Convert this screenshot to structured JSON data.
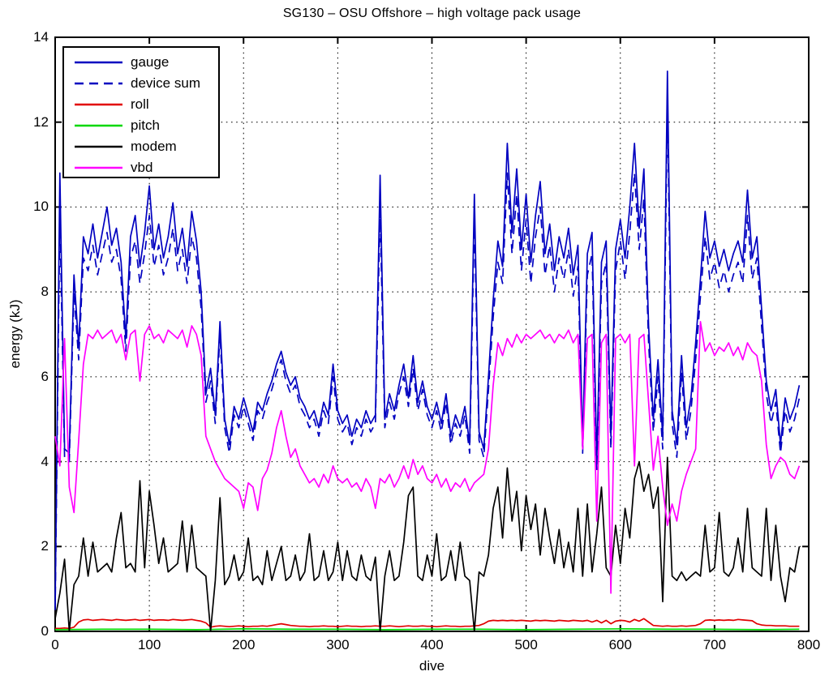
{
  "chart_data": {
    "type": "line",
    "title": "SG130 – OSU Offshore – high voltage pack usage",
    "xlabel": "dive",
    "ylabel": "energy (kJ)",
    "xlim": [
      0,
      800
    ],
    "ylim": [
      0,
      14
    ],
    "xticks": [
      0,
      100,
      200,
      300,
      400,
      500,
      600,
      700,
      800
    ],
    "yticks": [
      0,
      2,
      4,
      6,
      8,
      10,
      12,
      14
    ],
    "grid": true,
    "grid_style": "dotted",
    "legend_position": "top-left",
    "x": {
      "start": 0,
      "step": 5
    },
    "series": [
      {
        "name": "gauge",
        "color": "#0000C0",
        "style": "solid",
        "values": [
          0.6,
          10.8,
          4.3,
          4.2,
          8.4,
          6.7,
          9.3,
          8.9,
          9.6,
          8.8,
          9.4,
          10.0,
          9.1,
          9.5,
          8.7,
          6.9,
          9.3,
          9.8,
          8.6,
          9.4,
          10.5,
          9.0,
          9.6,
          8.8,
          9.3,
          10.1,
          8.9,
          9.5,
          8.6,
          9.9,
          9.2,
          8.0,
          5.6,
          6.2,
          5.1,
          7.3,
          5.0,
          4.4,
          5.3,
          5.0,
          5.5,
          5.1,
          4.7,
          5.4,
          5.2,
          5.6,
          5.9,
          6.3,
          6.6,
          6.1,
          5.8,
          6.0,
          5.5,
          5.3,
          5.0,
          5.2,
          4.8,
          5.4,
          5.1,
          6.3,
          5.2,
          4.9,
          5.1,
          4.6,
          5.0,
          4.8,
          5.2,
          4.9,
          5.1,
          10.75,
          5.0,
          5.6,
          5.2,
          5.8,
          6.3,
          5.5,
          6.5,
          5.4,
          5.9,
          5.3,
          5.0,
          5.4,
          4.9,
          5.6,
          4.6,
          5.1,
          4.8,
          5.3,
          4.4,
          10.3,
          4.7,
          4.3,
          6.0,
          7.8,
          9.2,
          8.6,
          11.5,
          9.4,
          10.9,
          9.0,
          10.3,
          8.7,
          9.8,
          10.6,
          8.9,
          9.6,
          8.5,
          9.3,
          8.8,
          9.5,
          8.4,
          9.1,
          4.4,
          8.9,
          9.4,
          4.0,
          8.7,
          9.2,
          4.6,
          9.0,
          9.7,
          8.8,
          10.0,
          11.5,
          9.5,
          10.9,
          7.2,
          5.0,
          6.4,
          4.6,
          13.2,
          5.2,
          4.4,
          6.5,
          4.8,
          5.5,
          6.8,
          8.3,
          9.9,
          8.8,
          9.2,
          8.6,
          9.0,
          8.5,
          8.9,
          9.2,
          8.7,
          10.4,
          8.8,
          9.3,
          7.6,
          5.9,
          5.2,
          5.7,
          4.4,
          5.5,
          5.0,
          5.3,
          5.8
        ]
      },
      {
        "name": "device sum",
        "color": "#0000C0",
        "style": "dashed",
        "values": [
          0.5,
          9.8,
          4.1,
          4.0,
          8.0,
          6.4,
          8.8,
          8.5,
          9.1,
          8.4,
          8.9,
          9.4,
          8.7,
          9.0,
          8.3,
          6.6,
          8.8,
          9.2,
          8.2,
          8.9,
          9.8,
          8.6,
          9.1,
          8.4,
          8.8,
          9.5,
          8.5,
          9.0,
          8.2,
          9.3,
          8.8,
          7.6,
          5.4,
          5.9,
          4.9,
          7.0,
          4.8,
          4.2,
          5.1,
          4.8,
          5.3,
          4.9,
          4.5,
          5.2,
          5.0,
          5.4,
          5.7,
          6.1,
          6.4,
          5.9,
          5.6,
          5.8,
          5.3,
          5.1,
          4.8,
          5.0,
          4.6,
          5.2,
          4.9,
          6.0,
          5.0,
          4.7,
          4.9,
          4.4,
          4.8,
          4.6,
          5.0,
          4.7,
          4.9,
          9.9,
          4.8,
          5.4,
          5.0,
          5.6,
          6.0,
          5.3,
          6.2,
          5.2,
          5.7,
          5.1,
          4.8,
          5.2,
          4.7,
          5.4,
          4.4,
          4.9,
          4.6,
          5.1,
          4.2,
          9.7,
          4.5,
          4.1,
          5.7,
          7.4,
          8.7,
          8.2,
          10.8,
          8.9,
          10.3,
          8.5,
          9.7,
          8.2,
          9.3,
          10.0,
          8.4,
          9.1,
          8.0,
          8.8,
          8.3,
          9.0,
          7.9,
          8.6,
          4.2,
          8.4,
          8.9,
          3.8,
          8.2,
          8.7,
          4.3,
          8.5,
          9.2,
          8.3,
          9.4,
          10.8,
          9.0,
          10.2,
          6.8,
          4.7,
          6.0,
          4.3,
          12.4,
          4.9,
          4.1,
          6.1,
          4.5,
          5.2,
          6.4,
          7.9,
          9.3,
          8.3,
          8.7,
          8.1,
          8.5,
          8.0,
          8.4,
          8.7,
          8.2,
          9.8,
          8.3,
          8.8,
          7.2,
          5.6,
          4.9,
          5.4,
          4.2,
          5.2,
          4.7,
          5.0,
          5.5
        ]
      },
      {
        "name": "roll",
        "color": "#E10000",
        "style": "solid",
        "values": [
          0.07,
          0.07,
          0.08,
          0.07,
          0.1,
          0.22,
          0.27,
          0.28,
          0.26,
          0.27,
          0.28,
          0.27,
          0.26,
          0.28,
          0.27,
          0.26,
          0.27,
          0.28,
          0.26,
          0.27,
          0.28,
          0.26,
          0.27,
          0.27,
          0.26,
          0.28,
          0.27,
          0.26,
          0.27,
          0.28,
          0.26,
          0.24,
          0.2,
          0.1,
          0.12,
          0.13,
          0.12,
          0.11,
          0.12,
          0.13,
          0.12,
          0.11,
          0.12,
          0.12,
          0.13,
          0.12,
          0.14,
          0.16,
          0.18,
          0.16,
          0.14,
          0.13,
          0.12,
          0.12,
          0.11,
          0.12,
          0.12,
          0.13,
          0.12,
          0.12,
          0.11,
          0.12,
          0.13,
          0.12,
          0.12,
          0.11,
          0.12,
          0.12,
          0.13,
          0.12,
          0.12,
          0.13,
          0.12,
          0.11,
          0.12,
          0.13,
          0.12,
          0.12,
          0.13,
          0.12,
          0.12,
          0.11,
          0.12,
          0.13,
          0.12,
          0.12,
          0.11,
          0.12,
          0.12,
          0.13,
          0.14,
          0.18,
          0.24,
          0.26,
          0.25,
          0.26,
          0.25,
          0.26,
          0.25,
          0.26,
          0.25,
          0.24,
          0.26,
          0.25,
          0.26,
          0.25,
          0.24,
          0.26,
          0.25,
          0.24,
          0.26,
          0.25,
          0.24,
          0.26,
          0.22,
          0.26,
          0.2,
          0.26,
          0.18,
          0.24,
          0.26,
          0.25,
          0.22,
          0.28,
          0.24,
          0.3,
          0.22,
          0.14,
          0.13,
          0.12,
          0.13,
          0.12,
          0.12,
          0.13,
          0.12,
          0.13,
          0.14,
          0.18,
          0.26,
          0.27,
          0.26,
          0.27,
          0.26,
          0.27,
          0.26,
          0.28,
          0.27,
          0.26,
          0.25,
          0.18,
          0.15,
          0.14,
          0.14,
          0.13,
          0.13,
          0.13,
          0.12,
          0.12,
          0.12
        ]
      },
      {
        "name": "pitch",
        "color": "#00D800",
        "style": "solid",
        "x": [
          0,
          50,
          100,
          150,
          200,
          250,
          300,
          350,
          400,
          450,
          500,
          550,
          600,
          650,
          700,
          750,
          790
        ],
        "values": [
          0.04,
          0.05,
          0.05,
          0.04,
          0.06,
          0.05,
          0.05,
          0.04,
          0.05,
          0.05,
          0.04,
          0.05,
          0.06,
          0.05,
          0.05,
          0.04,
          0.05
        ]
      },
      {
        "name": "modem",
        "color": "#000000",
        "style": "solid",
        "values": [
          0.3,
          0.9,
          1.7,
          0.0,
          1.1,
          1.3,
          2.2,
          1.3,
          2.1,
          1.4,
          1.5,
          1.6,
          1.4,
          2.2,
          2.8,
          1.5,
          1.6,
          1.4,
          3.55,
          1.5,
          3.3,
          2.5,
          1.6,
          2.2,
          1.4,
          1.5,
          1.6,
          2.6,
          1.4,
          2.5,
          1.5,
          1.4,
          1.3,
          0.0,
          1.2,
          3.15,
          1.1,
          1.3,
          1.8,
          1.2,
          1.4,
          2.2,
          1.2,
          1.3,
          1.1,
          1.9,
          1.2,
          1.6,
          2.0,
          1.2,
          1.3,
          1.8,
          1.2,
          1.4,
          2.3,
          1.2,
          1.3,
          1.9,
          1.2,
          1.4,
          2.1,
          1.2,
          1.9,
          1.3,
          1.2,
          1.8,
          1.3,
          1.2,
          1.75,
          0.0,
          1.3,
          1.9,
          1.2,
          1.3,
          2.1,
          3.2,
          3.4,
          1.3,
          1.2,
          1.8,
          1.3,
          2.3,
          1.2,
          1.3,
          1.9,
          1.2,
          2.1,
          1.3,
          1.2,
          0.0,
          1.4,
          1.3,
          1.8,
          2.9,
          3.4,
          2.2,
          3.85,
          2.6,
          3.3,
          1.9,
          3.2,
          2.4,
          3.0,
          1.8,
          2.9,
          2.2,
          1.6,
          2.4,
          1.5,
          2.1,
          1.4,
          2.9,
          1.3,
          3.0,
          1.4,
          2.3,
          3.4,
          1.5,
          1.3,
          2.5,
          1.6,
          2.9,
          2.2,
          3.6,
          4.0,
          3.3,
          3.7,
          2.9,
          3.4,
          0.7,
          4.1,
          1.3,
          1.2,
          1.4,
          1.2,
          1.3,
          1.4,
          1.3,
          2.5,
          1.4,
          1.5,
          2.8,
          1.4,
          1.3,
          1.5,
          2.2,
          1.4,
          2.9,
          1.5,
          1.4,
          1.3,
          2.9,
          1.2,
          2.5,
          1.3,
          0.7,
          1.5,
          1.4,
          2.0
        ]
      },
      {
        "name": "vbd",
        "color": "#FF00FF",
        "style": "solid",
        "values": [
          4.6,
          3.9,
          6.9,
          3.4,
          2.8,
          4.5,
          6.3,
          7.0,
          6.9,
          7.1,
          6.9,
          7.0,
          7.1,
          6.8,
          7.0,
          6.4,
          7.0,
          7.1,
          5.9,
          7.0,
          7.2,
          6.9,
          7.0,
          6.8,
          7.1,
          7.0,
          6.9,
          7.1,
          6.7,
          7.2,
          7.0,
          6.5,
          4.6,
          4.3,
          4.0,
          3.8,
          3.6,
          3.5,
          3.4,
          3.3,
          2.9,
          3.5,
          3.4,
          2.85,
          3.6,
          3.8,
          4.2,
          4.8,
          5.2,
          4.6,
          4.1,
          4.3,
          3.9,
          3.7,
          3.5,
          3.6,
          3.4,
          3.7,
          3.5,
          3.9,
          3.6,
          3.5,
          3.6,
          3.4,
          3.5,
          3.3,
          3.6,
          3.4,
          2.9,
          3.6,
          3.5,
          3.7,
          3.4,
          3.6,
          3.9,
          3.6,
          4.05,
          3.7,
          3.9,
          3.6,
          3.5,
          3.7,
          3.4,
          3.6,
          3.3,
          3.5,
          3.4,
          3.6,
          3.3,
          3.5,
          3.6,
          3.7,
          4.3,
          5.8,
          6.8,
          6.5,
          6.9,
          6.7,
          7.0,
          6.8,
          7.0,
          6.9,
          7.0,
          7.1,
          6.9,
          7.0,
          6.8,
          7.0,
          6.9,
          7.1,
          6.8,
          7.0,
          4.3,
          6.9,
          7.0,
          2.6,
          6.8,
          7.0,
          0.9,
          6.9,
          7.0,
          6.8,
          7.0,
          3.9,
          6.9,
          7.0,
          5.4,
          3.8,
          4.6,
          3.4,
          2.5,
          3.0,
          2.6,
          3.3,
          3.7,
          4.0,
          4.3,
          7.3,
          6.6,
          6.8,
          6.5,
          6.7,
          6.6,
          6.8,
          6.5,
          6.7,
          6.4,
          6.8,
          6.6,
          6.5,
          5.9,
          4.4,
          3.6,
          3.9,
          4.1,
          4.0,
          3.7,
          3.6,
          3.9
        ]
      }
    ]
  }
}
